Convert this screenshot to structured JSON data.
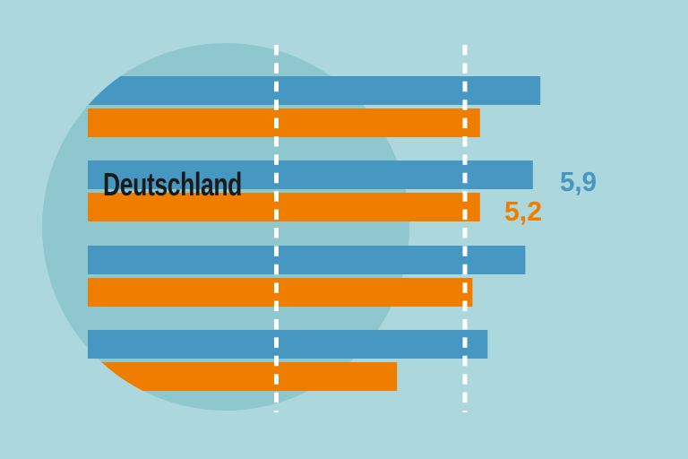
{
  "chart_data": {
    "type": "bar",
    "orientation": "horizontal",
    "title": "",
    "xlabel": "",
    "ylabel": "",
    "categories": [
      "",
      "Deutschland",
      "",
      ""
    ],
    "series": [
      {
        "name": "blue-series",
        "color": "#4697c1",
        "values": [
          6.0,
          5.9,
          5.8,
          5.3
        ]
      },
      {
        "name": "orange-series",
        "color": "#ef7d00",
        "values": [
          5.2,
          5.2,
          5.1,
          4.1
        ]
      }
    ],
    "highlight": {
      "category_index": 1,
      "label": "Deutschland",
      "value_labels": {
        "blue": "5,9",
        "orange": "5,2"
      }
    },
    "gridlines": {
      "values": [
        2.5,
        5.0
      ],
      "style": "dashed",
      "color": "#ffffff"
    },
    "xlim": [
      0,
      8
    ],
    "axis_ticks_visible": false,
    "legend_visible": false
  },
  "colors": {
    "background": "#acd7dd",
    "circle": "#8ec7ce",
    "bar_blue": "#4697c1",
    "bar_orange": "#ef7d00",
    "category_text": "#1a1a1a",
    "gridline": "#ffffff"
  }
}
